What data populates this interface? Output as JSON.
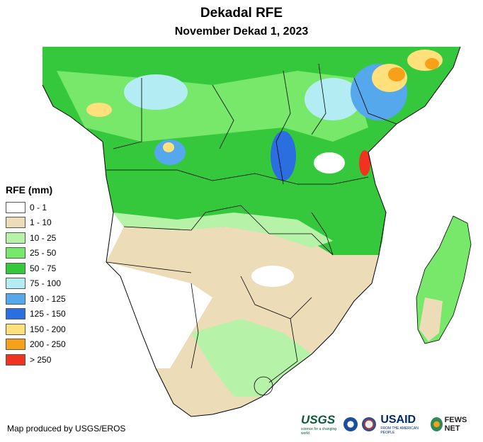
{
  "title": "Dekadal RFE",
  "subtitle": "November Dekad 1, 2023",
  "legend": {
    "title": "RFE (mm)",
    "items": [
      {
        "label": "0 - 1",
        "color": "#ffffff"
      },
      {
        "label": "1 - 10",
        "color": "#ecdcb8"
      },
      {
        "label": "10 - 25",
        "color": "#b6f3a8"
      },
      {
        "label": "25 - 50",
        "color": "#78e86a"
      },
      {
        "label": "50 - 75",
        "color": "#36c83c"
      },
      {
        "label": "75 - 100",
        "color": "#b4ecf4"
      },
      {
        "label": "100 - 125",
        "color": "#55a8ec"
      },
      {
        "label": "125 - 150",
        "color": "#2a6ee0"
      },
      {
        "label": "150 - 200",
        "color": "#ffe07a"
      },
      {
        "label": "200 - 250",
        "color": "#f7a01a"
      },
      {
        "label": "> 250",
        "color": "#f0321e"
      }
    ]
  },
  "credit": "Map produced by USGS/EROS",
  "logos": {
    "usgs": "USGS",
    "usgs_tagline": "science for a changing world",
    "usaid": "USAID",
    "usaid_tagline": "FROM THE AMERICAN PEOPLE",
    "fews": "FEWS NET"
  }
}
